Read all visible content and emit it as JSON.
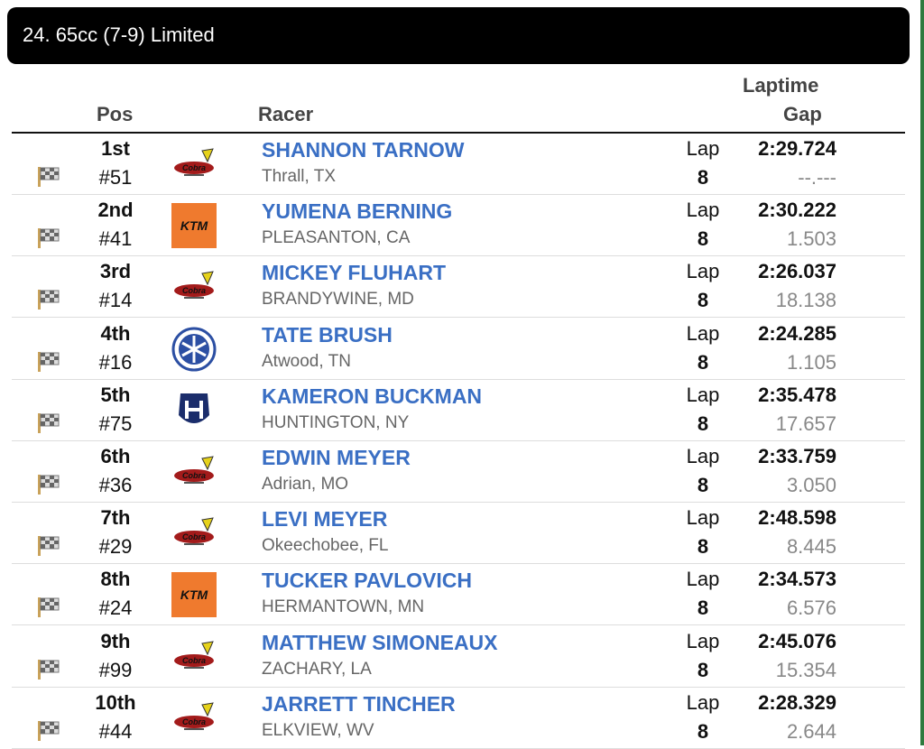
{
  "title": "24. 65cc (7-9) Limited",
  "headers": {
    "pos": "Pos",
    "racer": "Racer",
    "laptime": "Laptime",
    "gap": "Gap"
  },
  "lap_label": "Lap",
  "colors": {
    "name": "#3a6fc4",
    "header_bg": "#000000",
    "ktm": "#ef7a2e"
  },
  "rows": [
    {
      "pos": "1st",
      "num": "#51",
      "brand": "cobra",
      "name": "SHANNON TARNOW",
      "loc": "Thrall, TX",
      "laps": "8",
      "time": "2:29.724",
      "gap": "--.---"
    },
    {
      "pos": "2nd",
      "num": "#41",
      "brand": "ktm",
      "name": "YUMENA BERNING",
      "loc": "PLEASANTON, CA",
      "laps": "8",
      "time": "2:30.222",
      "gap": "1.503"
    },
    {
      "pos": "3rd",
      "num": "#14",
      "brand": "cobra",
      "name": "MICKEY FLUHART",
      "loc": "BRANDYWINE, MD",
      "laps": "8",
      "time": "2:26.037",
      "gap": "18.138"
    },
    {
      "pos": "4th",
      "num": "#16",
      "brand": "yamaha",
      "name": "TATE BRUSH",
      "loc": "Atwood, TN",
      "laps": "8",
      "time": "2:24.285",
      "gap": "1.105"
    },
    {
      "pos": "5th",
      "num": "#75",
      "brand": "husqvarna",
      "name": "KAMERON BUCKMAN",
      "loc": "HUNTINGTON, NY",
      "laps": "8",
      "time": "2:35.478",
      "gap": "17.657"
    },
    {
      "pos": "6th",
      "num": "#36",
      "brand": "cobra",
      "name": "EDWIN MEYER",
      "loc": "Adrian, MO",
      "laps": "8",
      "time": "2:33.759",
      "gap": "3.050"
    },
    {
      "pos": "7th",
      "num": "#29",
      "brand": "cobra",
      "name": "LEVI MEYER",
      "loc": "Okeechobee, FL",
      "laps": "8",
      "time": "2:48.598",
      "gap": "8.445"
    },
    {
      "pos": "8th",
      "num": "#24",
      "brand": "ktm",
      "name": "TUCKER PAVLOVICH",
      "loc": "HERMANTOWN, MN",
      "laps": "8",
      "time": "2:34.573",
      "gap": "6.576"
    },
    {
      "pos": "9th",
      "num": "#99",
      "brand": "cobra",
      "name": "MATTHEW SIMONEAUX",
      "loc": "ZACHARY, LA",
      "laps": "8",
      "time": "2:45.076",
      "gap": "15.354"
    },
    {
      "pos": "10th",
      "num": "#44",
      "brand": "cobra",
      "name": "JARRETT TINCHER",
      "loc": "ELKVIEW, WV",
      "laps": "8",
      "time": "2:28.329",
      "gap": "2.644"
    }
  ]
}
